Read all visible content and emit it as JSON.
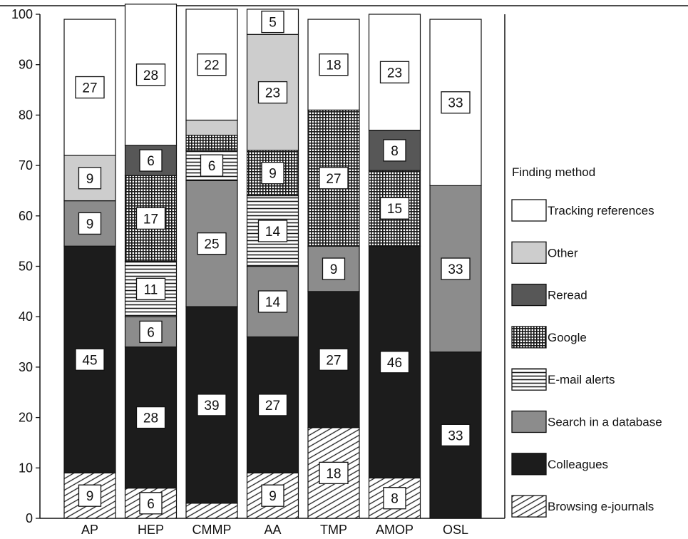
{
  "chart_data": {
    "type": "bar",
    "stacked": true,
    "categories": [
      "AP",
      "HEP",
      "CMMP",
      "AA",
      "TMP",
      "AMOP",
      "OSL"
    ],
    "ylim": [
      0,
      100
    ],
    "yticks": [
      0,
      10,
      20,
      30,
      40,
      50,
      60,
      70,
      80,
      90,
      100
    ],
    "grid": false,
    "legend_title": "Finding method",
    "legend_position": "right",
    "series": [
      {
        "name": "Browsing e-journals",
        "key": "browsing",
        "fill": "diag",
        "values": [
          9,
          6,
          3,
          9,
          18,
          8,
          0
        ],
        "labels": [
          "9",
          "6",
          "",
          "9",
          "18",
          "8",
          ""
        ]
      },
      {
        "name": "Colleagues",
        "key": "colleagues",
        "fill": "#1c1c1c",
        "values": [
          45,
          28,
          39,
          27,
          27,
          46,
          33
        ],
        "labels": [
          "45",
          "28",
          "39",
          "27",
          "27",
          "46",
          "33"
        ]
      },
      {
        "name": "Search in a database",
        "key": "search",
        "fill": "#8c8c8c",
        "values": [
          9,
          6,
          25,
          14,
          9,
          0,
          33
        ],
        "labels": [
          "9",
          "6",
          "25",
          "14",
          "9",
          "",
          "33"
        ]
      },
      {
        "name": "E-mail alerts",
        "key": "email",
        "fill": "hlines",
        "values": [
          0,
          11,
          6,
          14,
          0,
          0,
          0
        ],
        "labels": [
          "",
          "11",
          "6",
          "14",
          "",
          "",
          ""
        ]
      },
      {
        "name": "Google",
        "key": "google",
        "fill": "grid",
        "values": [
          0,
          17,
          3,
          9,
          27,
          15,
          0
        ],
        "labels": [
          "",
          "17",
          "",
          "9",
          "27",
          "15",
          ""
        ]
      },
      {
        "name": "Reread",
        "key": "reread",
        "fill": "#575757",
        "values": [
          0,
          6,
          0,
          0,
          0,
          8,
          0
        ],
        "labels": [
          "",
          "6",
          "",
          "",
          "",
          "8",
          ""
        ]
      },
      {
        "name": "Other",
        "key": "other",
        "fill": "#cdcdcd",
        "values": [
          9,
          0,
          3,
          23,
          0,
          0,
          0
        ],
        "labels": [
          "9",
          "",
          "",
          "23",
          "",
          "",
          ""
        ]
      },
      {
        "name": "Tracking references",
        "key": "tracking",
        "fill": "#ffffff",
        "values": [
          27,
          28,
          22,
          5,
          18,
          23,
          33
        ],
        "labels": [
          "27",
          "28",
          "22",
          "5",
          "18",
          "23",
          "33"
        ]
      }
    ],
    "legend_order": [
      "tracking",
      "other",
      "reread",
      "google",
      "email",
      "search",
      "colleagues",
      "browsing"
    ]
  }
}
